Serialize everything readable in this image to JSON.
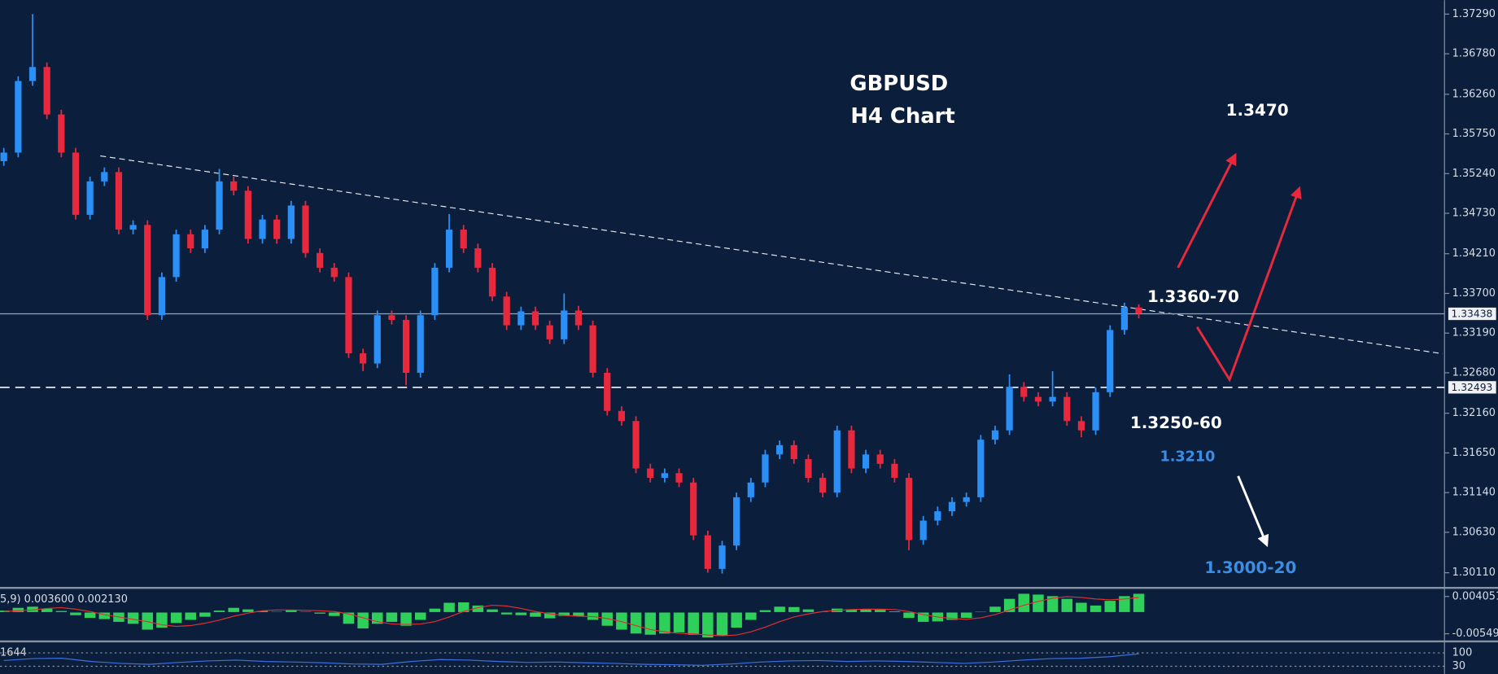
{
  "chart_data": [
    {
      "type": "candlestick",
      "title": "GBPUSD",
      "subtitle": "H4 Chart",
      "up_color": "#2a8ff7",
      "down_color": "#e8283c",
      "open": [
        1.354,
        1.3551,
        1.3643,
        1.3661,
        1.36,
        1.3551,
        1.3471,
        1.3514,
        1.3526,
        1.3452,
        1.3458,
        1.3342,
        1.3391,
        1.3446,
        1.3428,
        1.3452,
        1.3514,
        1.3502,
        1.344,
        1.3465,
        1.344,
        1.3483,
        1.3422,
        1.3403,
        1.3391,
        1.3293,
        1.328,
        1.3342,
        1.3336,
        1.3268,
        1.3342,
        1.3403,
        1.3452,
        1.3428,
        1.3403,
        1.3366,
        1.3329,
        1.3347,
        1.3329,
        1.3311,
        1.3348,
        1.3329,
        1.3268,
        1.3219,
        1.3206,
        1.3145,
        1.3133,
        1.3139,
        1.3127,
        1.3059,
        1.3016,
        1.3046,
        1.3108,
        1.3127,
        1.3163,
        1.3175,
        1.3157,
        1.3133,
        1.3114,
        1.3194,
        1.3145,
        1.3163,
        1.3151,
        1.3133,
        1.3053,
        1.3078,
        1.309,
        1.3102,
        1.3108,
        1.3182,
        1.3194,
        1.325,
        1.3237,
        1.3231,
        1.3237,
        1.3206,
        1.3194,
        1.3243,
        1.3323,
        1.3352
      ],
      "high": [
        1.3557,
        1.3649,
        1.3729,
        1.3667,
        1.3606,
        1.3557,
        1.352,
        1.3532,
        1.3532,
        1.3464,
        1.3464,
        1.3397,
        1.3452,
        1.3452,
        1.3458,
        1.353,
        1.352,
        1.3508,
        1.3471,
        1.3471,
        1.3489,
        1.3489,
        1.3428,
        1.3409,
        1.3397,
        1.3299,
        1.3348,
        1.3348,
        1.3342,
        1.3348,
        1.3409,
        1.3472,
        1.3458,
        1.3434,
        1.3409,
        1.3372,
        1.3353,
        1.3353,
        1.3335,
        1.337,
        1.3354,
        1.3335,
        1.3274,
        1.3225,
        1.3212,
        1.3151,
        1.3145,
        1.3145,
        1.3133,
        1.3065,
        1.3052,
        1.3114,
        1.3133,
        1.3169,
        1.3181,
        1.3181,
        1.3163,
        1.3139,
        1.32,
        1.32,
        1.3169,
        1.3169,
        1.3157,
        1.3139,
        1.3084,
        1.3096,
        1.3108,
        1.3114,
        1.3188,
        1.32,
        1.3266,
        1.3256,
        1.3243,
        1.327,
        1.3243,
        1.3212,
        1.3249,
        1.3329,
        1.3358,
        1.3356
      ],
      "low": [
        1.3534,
        1.3545,
        1.3637,
        1.3594,
        1.3545,
        1.3465,
        1.3465,
        1.3508,
        1.3446,
        1.3446,
        1.3336,
        1.3336,
        1.3385,
        1.3422,
        1.3422,
        1.3446,
        1.3496,
        1.3434,
        1.3434,
        1.3434,
        1.3434,
        1.3416,
        1.3397,
        1.3385,
        1.3287,
        1.327,
        1.3274,
        1.333,
        1.3252,
        1.3262,
        1.3336,
        1.3397,
        1.3422,
        1.3397,
        1.336,
        1.3323,
        1.3323,
        1.3323,
        1.3305,
        1.3305,
        1.3323,
        1.3262,
        1.3213,
        1.32,
        1.3139,
        1.3127,
        1.3127,
        1.3121,
        1.3053,
        1.3011,
        1.301,
        1.304,
        1.3102,
        1.3121,
        1.3157,
        1.3151,
        1.3127,
        1.3108,
        1.3108,
        1.3139,
        1.3139,
        1.3145,
        1.3127,
        1.304,
        1.3047,
        1.3072,
        1.3084,
        1.3096,
        1.3102,
        1.3176,
        1.3188,
        1.3231,
        1.3225,
        1.3225,
        1.32,
        1.3185,
        1.3188,
        1.3237,
        1.3317,
        1.3338
      ],
      "close": [
        1.3551,
        1.3643,
        1.3661,
        1.36,
        1.3551,
        1.3471,
        1.3514,
        1.3526,
        1.3452,
        1.3458,
        1.3342,
        1.3391,
        1.3446,
        1.3428,
        1.3452,
        1.3514,
        1.3502,
        1.344,
        1.3465,
        1.344,
        1.3483,
        1.3422,
        1.3403,
        1.3391,
        1.3293,
        1.328,
        1.3342,
        1.3336,
        1.3268,
        1.3342,
        1.3403,
        1.3452,
        1.3428,
        1.3403,
        1.3366,
        1.3329,
        1.3347,
        1.3329,
        1.3311,
        1.3348,
        1.3329,
        1.3268,
        1.3219,
        1.3206,
        1.3145,
        1.3133,
        1.3139,
        1.3127,
        1.3059,
        1.3016,
        1.3046,
        1.3108,
        1.3127,
        1.3163,
        1.3175,
        1.3157,
        1.3133,
        1.3114,
        1.3194,
        1.3145,
        1.3163,
        1.3151,
        1.3133,
        1.3053,
        1.3078,
        1.309,
        1.3102,
        1.3108,
        1.3182,
        1.3194,
        1.325,
        1.3237,
        1.3231,
        1.3237,
        1.3206,
        1.3194,
        1.3243,
        1.3323,
        1.3352,
        1.3344
      ],
      "ylim": [
        1.2994,
        1.3747
      ],
      "yticks": [
        {
          "value": 1.3729,
          "label": "1.37290"
        },
        {
          "value": 1.3678,
          "label": "1.36780"
        },
        {
          "value": 1.3626,
          "label": "1.36260"
        },
        {
          "value": 1.3575,
          "label": "1.35750"
        },
        {
          "value": 1.3524,
          "label": "1.35240"
        },
        {
          "value": 1.3473,
          "label": "1.34730"
        },
        {
          "value": 1.3421,
          "label": "1.34210"
        },
        {
          "value": 1.337,
          "label": "1.33700"
        },
        {
          "value": 1.3319,
          "label": "1.33190"
        },
        {
          "value": 1.3268,
          "label": "1.32680"
        },
        {
          "value": 1.3216,
          "label": "1.32160"
        },
        {
          "value": 1.3165,
          "label": "1.31650"
        },
        {
          "value": 1.3114,
          "label": "1.31140"
        },
        {
          "value": 1.3063,
          "label": "1.30630"
        },
        {
          "value": 1.3011,
          "label": "1.30110"
        }
      ],
      "hlines": [
        {
          "value": 1.33438,
          "style": "solid"
        },
        {
          "value": 1.32493,
          "style": "dashed"
        }
      ],
      "annotations": [
        "1.3470",
        "1.3360-70",
        "1.3250-60",
        "1.3210",
        "1.3000-20"
      ]
    },
    {
      "type": "macd",
      "label": "5,9) 0.003600 0.002130",
      "histogram": {
        "color": "#2fd05a",
        "values": [
          0.0005,
          0.0012,
          0.0015,
          0.001,
          0.0004,
          -0.0008,
          -0.0015,
          -0.0018,
          -0.0025,
          -0.003,
          -0.0045,
          -0.004,
          -0.0028,
          -0.002,
          -0.0012,
          0.0005,
          0.0012,
          0.0008,
          0.0004,
          0.0002,
          0.0006,
          0.0002,
          -0.0004,
          -0.001,
          -0.003,
          -0.0042,
          -0.003,
          -0.0025,
          -0.0035,
          -0.002,
          0.001,
          0.0025,
          0.0026,
          0.0018,
          0.0008,
          -0.0006,
          -0.0008,
          -0.0012,
          -0.0016,
          -0.001,
          -0.001,
          -0.002,
          -0.0035,
          -0.0045,
          -0.0055,
          -0.0058,
          -0.0055,
          -0.0052,
          -0.0058,
          -0.0065,
          -0.006,
          -0.004,
          -0.002,
          0.0006,
          0.0015,
          0.0014,
          0.0008,
          0.0002,
          0.001,
          0.0008,
          0.0008,
          0.0007,
          0.0003,
          -0.0015,
          -0.0025,
          -0.0024,
          -0.002,
          -0.0015,
          0.0002,
          0.0015,
          0.0035,
          0.0048,
          0.0046,
          0.0042,
          0.0035,
          0.0025,
          0.0018,
          0.003,
          0.0042,
          0.0048
        ]
      },
      "signal": {
        "color": "#e03030",
        "values": [
          0.0002,
          0.0004,
          0.0006,
          0.001,
          0.0012,
          0.0008,
          0.0002,
          -0.0006,
          -0.0012,
          -0.0018,
          -0.0024,
          -0.0032,
          -0.0036,
          -0.0034,
          -0.0028,
          -0.002,
          -0.001,
          -0.0002,
          0.0004,
          0.0006,
          0.0006,
          0.0005,
          0.0004,
          0.0002,
          -0.0004,
          -0.0014,
          -0.0024,
          -0.003,
          -0.0031,
          -0.003,
          -0.0024,
          -0.0012,
          0.0002,
          0.0012,
          0.0018,
          0.0016,
          0.001,
          0.0002,
          -0.0004,
          -0.0008,
          -0.001,
          -0.0011,
          -0.0016,
          -0.0024,
          -0.0034,
          -0.0044,
          -0.005,
          -0.0054,
          -0.0055,
          -0.0058,
          -0.006,
          -0.0058,
          -0.005,
          -0.0038,
          -0.0024,
          -0.0012,
          -0.0004,
          0.0002,
          0.0005,
          0.0007,
          0.0008,
          0.0008,
          0.0007,
          0.0002,
          -0.0006,
          -0.0012,
          -0.0016,
          -0.0018,
          -0.0014,
          -0.0006,
          0.0006,
          0.0018,
          0.0028,
          0.0036,
          0.004,
          0.0038,
          0.0034,
          0.0032,
          0.0034,
          0.0038
        ]
      },
      "ylim": [
        -0.00696,
        0.00576
      ],
      "yticks": [
        0.004051,
        -0.00549
      ]
    },
    {
      "type": "line",
      "label": "1644",
      "color": "#3d6fe0",
      "values": [
        60,
        70,
        72,
        55,
        45,
        40,
        50,
        58,
        62,
        55,
        52,
        48,
        42,
        40,
        55,
        65,
        62,
        55,
        50,
        52,
        48,
        45,
        40,
        38,
        35,
        42,
        52,
        58,
        60,
        55,
        58,
        55,
        50,
        45,
        52,
        62,
        70,
        72,
        80,
        95
      ],
      "ylim": [
        -10,
        150
      ],
      "yticks": [
        100,
        30
      ]
    }
  ]
}
